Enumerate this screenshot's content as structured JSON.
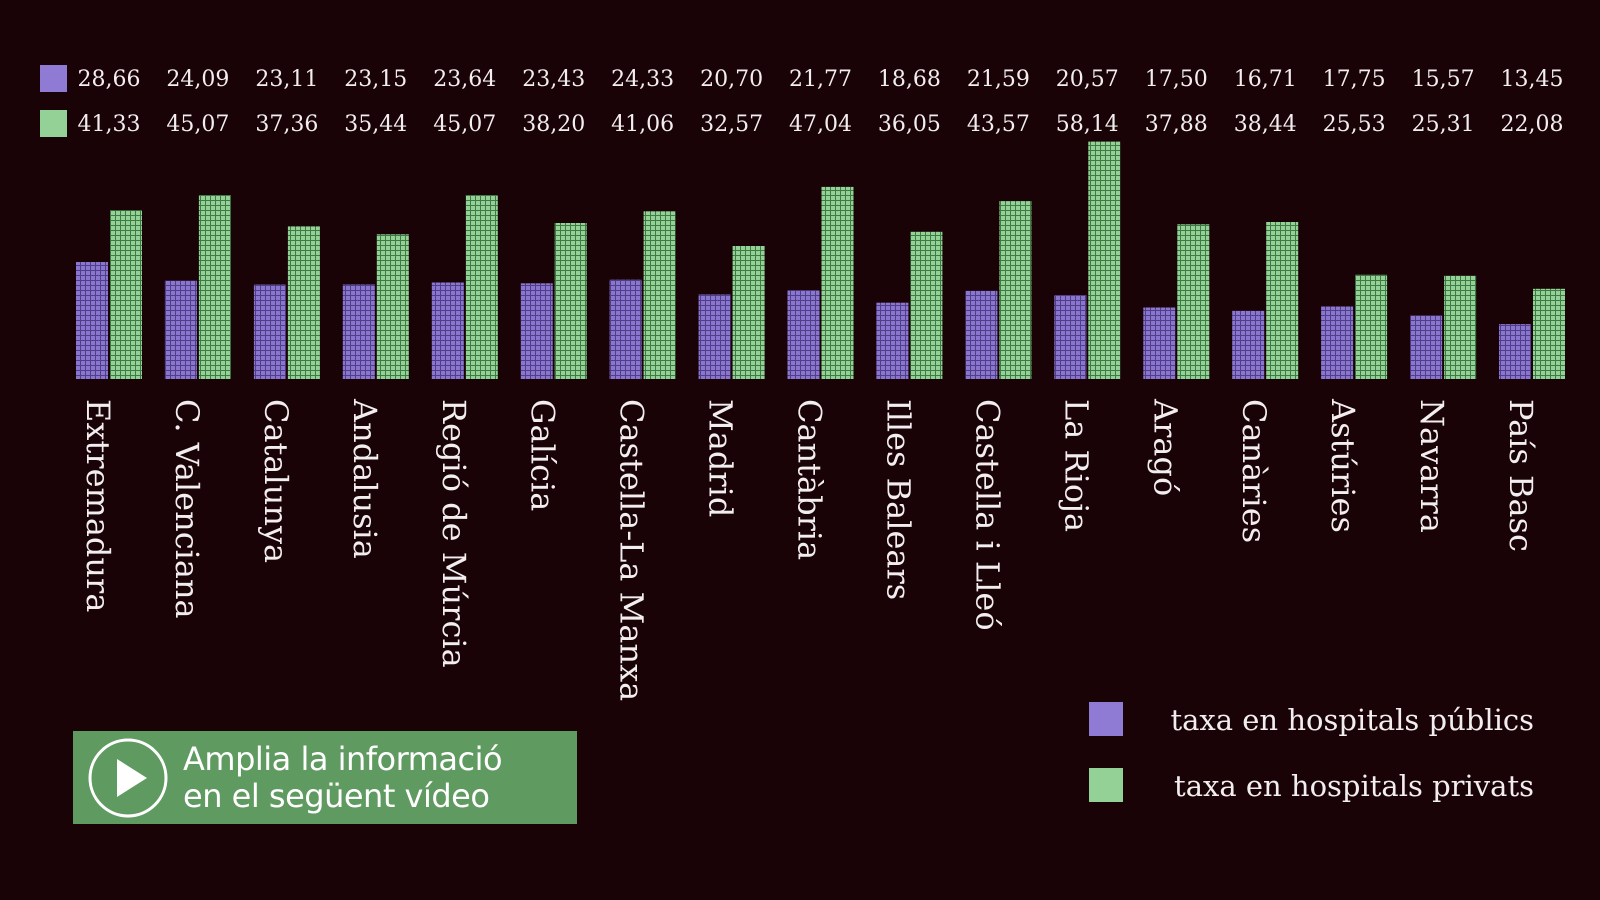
{
  "chart_data": {
    "type": "bar",
    "categories": [
      "Extremadura",
      "C. Valenciana",
      "Catalunya",
      "Andalusia",
      "Regió de Múrcia",
      "Galícia",
      "Castella-La Manxa",
      "Madrid",
      "Cantàbria",
      "Illes Balears",
      "Castella i Lleó",
      "La Rioja",
      "Aragó",
      "Canàries",
      "Astúries",
      "Navarra",
      "País Basc"
    ],
    "series": [
      {
        "name": "taxa en hospitals públics",
        "color": "#8f7ad4",
        "values": [
          28.66,
          24.09,
          23.11,
          23.15,
          23.64,
          23.43,
          24.33,
          20.7,
          21.77,
          18.68,
          21.59,
          20.57,
          17.5,
          16.71,
          17.75,
          15.57,
          13.45
        ],
        "labels": [
          "28,66",
          "24,09",
          "23,11",
          "23,15",
          "23,64",
          "23,43",
          "24,33",
          "20,70",
          "21,77",
          "18,68",
          "21,59",
          "20,57",
          "17,50",
          "16,71",
          "17,75",
          "15,57",
          "13,45"
        ]
      },
      {
        "name": "taxa en hospitals privats",
        "color": "#93d196",
        "values": [
          41.33,
          45.07,
          37.36,
          35.44,
          45.07,
          38.2,
          41.06,
          32.57,
          47.04,
          36.05,
          43.57,
          58.14,
          37.88,
          38.44,
          25.53,
          25.31,
          22.08
        ],
        "labels": [
          "41,33",
          "45,07",
          "37,36",
          "35,44",
          "45,07",
          "38,20",
          "41,06",
          "32,57",
          "47,04",
          "36,05",
          "43,57",
          "58,14",
          "37,88",
          "38,44",
          "25,53",
          "25,31",
          "22,08"
        ]
      }
    ],
    "ylim": [
      0,
      60
    ],
    "grid": false,
    "legend": "bottom-right"
  },
  "video_button": {
    "line1": "Amplia la informació",
    "line2": "en el següent vídeo",
    "icon": "play-icon"
  }
}
